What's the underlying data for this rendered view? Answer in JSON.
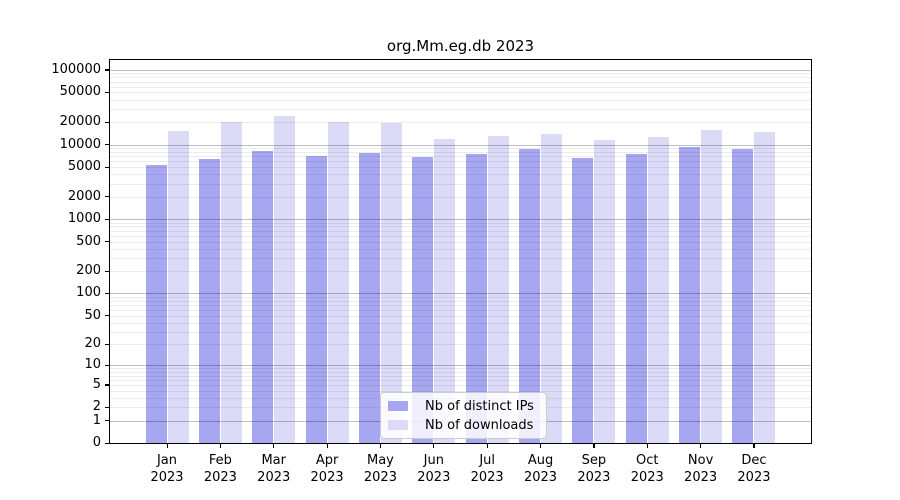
{
  "chart_data": {
    "type": "bar",
    "title": "org.Mm.eg.db 2023",
    "categories": [
      "Jan",
      "Feb",
      "Mar",
      "Apr",
      "May",
      "Jun",
      "Jul",
      "Aug",
      "Sep",
      "Oct",
      "Nov",
      "Dec"
    ],
    "year_label": "2023",
    "series": [
      {
        "name": "Nb of distinct IPs",
        "color": "#a7a7f1",
        "values": [
          5300,
          6400,
          8200,
          7000,
          7800,
          6800,
          7400,
          8800,
          6700,
          7500,
          9300,
          8700
        ]
      },
      {
        "name": "Nb of downloads",
        "color": "#dbdbf8",
        "values": [
          15000,
          19800,
          23800,
          19800,
          19600,
          11800,
          12900,
          13800,
          11600,
          12700,
          15700,
          14800
        ]
      }
    ],
    "xlabel": "",
    "ylabel": "",
    "y_scale": "log1p",
    "y_ticks": [
      100000,
      50000,
      20000,
      10000,
      5000,
      2000,
      1000,
      500,
      200,
      100,
      50,
      20,
      10,
      5,
      2,
      1,
      0
    ],
    "y_top_value": 136000,
    "grid": true,
    "legend_position": "bottom-center",
    "style": {
      "minor_grid_color": "rgba(0,0,0,0.075)",
      "major_grid_color": "rgba(0,0,0,0.25)",
      "axis_color": "#000000",
      "background": "#ffffff"
    }
  }
}
